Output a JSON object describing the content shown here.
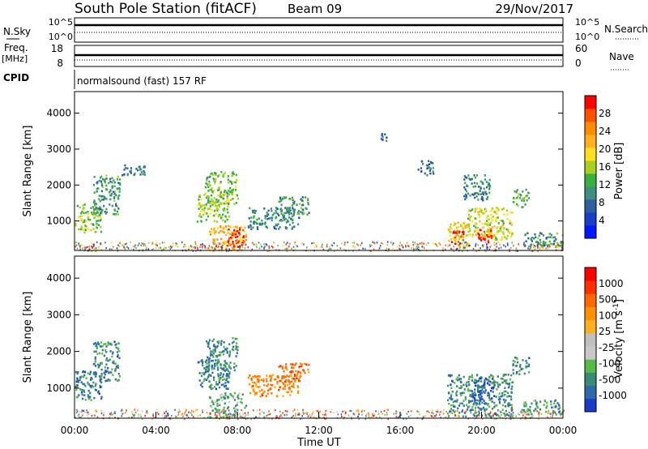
{
  "header": {
    "station": "South Pole Station (fitACF)",
    "beam": "Beam 09",
    "date": "29/Nov/2017"
  },
  "strip_panels": {
    "nsky_label": "N.Sky",
    "nsearch_label": "N.Search",
    "nsky_ticks": [
      "10^5",
      "10^0"
    ],
    "nsearch_ticks": [
      "10^5",
      "10^0"
    ],
    "freq_label": "Freq.",
    "freq_unit": "[MHz]",
    "freq_ticks": [
      "18",
      "8"
    ],
    "nave_label": "Nave",
    "nave_ticks": [
      "60",
      "0"
    ],
    "cpid_label": "CPID",
    "cpid_text": "normalsound (fast) 157 RF"
  },
  "chart_data": [
    {
      "type": "heatmap",
      "name": "power",
      "ylabel": "Slant Range [km]",
      "xlabel": "",
      "ylim": [
        180,
        4600
      ],
      "xlim": [
        0,
        24
      ],
      "yticks": [
        "4000",
        "3000",
        "2000",
        "1000"
      ],
      "colorbar": {
        "label": "Power [dB]",
        "ticks": [
          "28",
          "24",
          "20",
          "16",
          "12",
          "8",
          "4"
        ],
        "colors": [
          "#0018ff",
          "#1c3dc8",
          "#2e5fa0",
          "#3f8f80",
          "#38b040",
          "#a8d020",
          "#ffe020",
          "#ffb020",
          "#ff8c00",
          "#ff5000",
          "#ff0000"
        ]
      },
      "blobs": [
        {
          "t0": 0.0,
          "t1": 1.3,
          "r0": 700,
          "r1": 1500,
          "level": 0.45
        },
        {
          "t0": 0.9,
          "t1": 2.2,
          "r0": 1200,
          "r1": 2300,
          "level": 0.35
        },
        {
          "t0": 2.3,
          "t1": 3.5,
          "r0": 2300,
          "r1": 2600,
          "level": 0.25
        },
        {
          "t0": 6.0,
          "t1": 7.6,
          "r0": 1000,
          "r1": 1800,
          "level": 0.5
        },
        {
          "t0": 6.4,
          "t1": 8.0,
          "r0": 1500,
          "r1": 2400,
          "level": 0.45
        },
        {
          "t0": 6.6,
          "t1": 8.4,
          "r0": 200,
          "r1": 900,
          "level": 0.7
        },
        {
          "t0": 7.5,
          "t1": 8.3,
          "r0": 300,
          "r1": 800,
          "level": 0.95
        },
        {
          "t0": 8.5,
          "t1": 11.0,
          "r0": 800,
          "r1": 1400,
          "level": 0.3
        },
        {
          "t0": 10.0,
          "t1": 11.5,
          "r0": 1200,
          "r1": 1700,
          "level": 0.35
        },
        {
          "t0": 15.0,
          "t1": 15.3,
          "r0": 3200,
          "r1": 3500,
          "level": 0.2
        },
        {
          "t0": 16.8,
          "t1": 17.6,
          "r0": 2300,
          "r1": 2700,
          "level": 0.25
        },
        {
          "t0": 18.3,
          "t1": 19.4,
          "r0": 250,
          "r1": 1000,
          "level": 0.6
        },
        {
          "t0": 18.5,
          "t1": 19.1,
          "r0": 350,
          "r1": 750,
          "level": 0.95
        },
        {
          "t0": 19.3,
          "t1": 21.5,
          "r0": 500,
          "r1": 1400,
          "level": 0.55
        },
        {
          "t0": 19.8,
          "t1": 20.5,
          "r0": 400,
          "r1": 800,
          "level": 0.95
        },
        {
          "t0": 19.0,
          "t1": 20.4,
          "r0": 1600,
          "r1": 2300,
          "level": 0.3
        },
        {
          "t0": 21.5,
          "t1": 22.3,
          "r0": 1400,
          "r1": 1900,
          "level": 0.4
        },
        {
          "t0": 22.0,
          "t1": 24.0,
          "r0": 300,
          "r1": 700,
          "level": 0.35
        }
      ]
    },
    {
      "type": "heatmap",
      "name": "velocity",
      "ylabel": "Slant Range [km]",
      "xlabel": "Time UT",
      "ylim": [
        180,
        4600
      ],
      "xlim": [
        0,
        24
      ],
      "yticks": [
        "4000",
        "3000",
        "2000",
        "1000"
      ],
      "xticks": [
        "00:00",
        "04:00",
        "08:00",
        "12:00",
        "16:00",
        "20:00",
        "00:00"
      ],
      "colorbar": {
        "label": "Velocity [m s^-1]",
        "ticks": [
          "1000",
          "500",
          "100",
          "25",
          "-25",
          "-100",
          "-500",
          "-1000"
        ],
        "colors": [
          "#1a3cc8",
          "#2e6aa8",
          "#3a8a78",
          "#58b848",
          "#c8c8c8",
          "#c0c0c0",
          "#ffb020",
          "#ff9000",
          "#ff6800",
          "#ff3000",
          "#ff0000"
        ]
      },
      "blobs": [
        {
          "t0": 0.0,
          "t1": 1.3,
          "r0": 700,
          "r1": 1500,
          "level": 0.2
        },
        {
          "t0": 0.9,
          "t1": 2.2,
          "r0": 1200,
          "r1": 2300,
          "level": 0.2
        },
        {
          "t0": 6.0,
          "t1": 7.6,
          "r0": 1000,
          "r1": 1800,
          "level": 0.2
        },
        {
          "t0": 6.4,
          "t1": 8.0,
          "r0": 1500,
          "r1": 2400,
          "level": 0.22
        },
        {
          "t0": 6.6,
          "t1": 8.4,
          "r0": 200,
          "r1": 900,
          "level": 0.3
        },
        {
          "t0": 8.5,
          "t1": 11.0,
          "r0": 800,
          "r1": 1400,
          "level": 0.7
        },
        {
          "t0": 10.0,
          "t1": 11.5,
          "r0": 1200,
          "r1": 1700,
          "level": 0.75
        },
        {
          "t0": 18.3,
          "t1": 21.5,
          "r0": 250,
          "r1": 1400,
          "level": 0.22
        },
        {
          "t0": 19.5,
          "t1": 20.6,
          "r0": 600,
          "r1": 1300,
          "level": 0.12
        },
        {
          "t0": 21.5,
          "t1": 22.3,
          "r0": 1400,
          "r1": 1900,
          "level": 0.2
        },
        {
          "t0": 22.0,
          "t1": 24.0,
          "r0": 300,
          "r1": 700,
          "level": 0.25
        }
      ]
    }
  ]
}
